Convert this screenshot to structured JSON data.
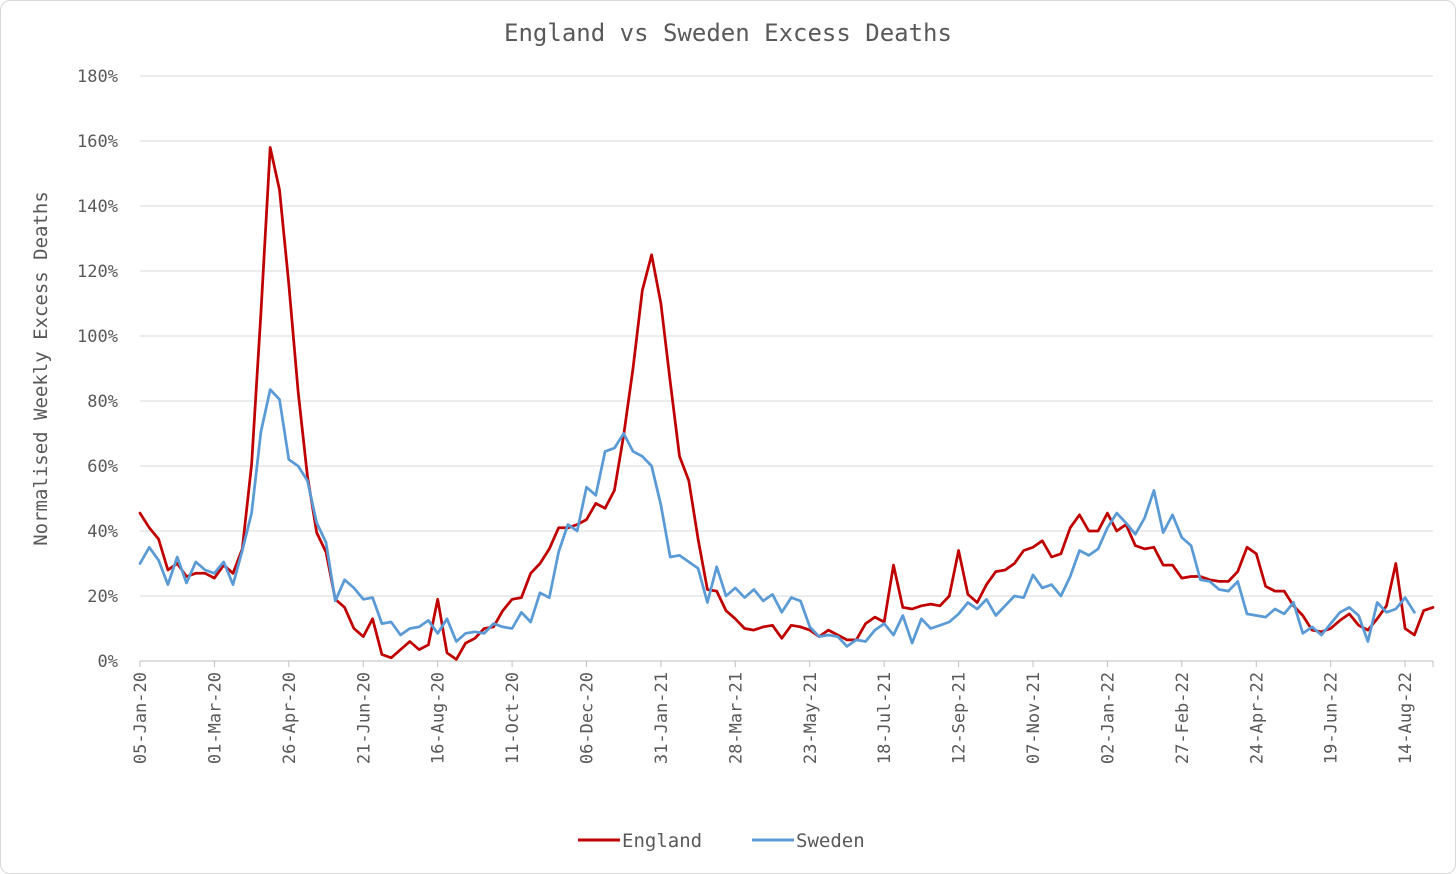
{
  "chart_data": {
    "type": "line",
    "title": "England vs Sweden Excess Deaths",
    "xlabel": "",
    "ylabel": "Normalised Weekly Excess Deaths",
    "ylim": [
      0,
      180
    ],
    "yticks": [
      0,
      20,
      40,
      60,
      80,
      100,
      120,
      140,
      160,
      180
    ],
    "ytick_labels": [
      "0%",
      "20%",
      "40%",
      "60%",
      "80%",
      "100%",
      "120%",
      "140%",
      "160%",
      "180%"
    ],
    "x_start": "05-Jan-20",
    "x_end": "21-Aug-22",
    "xtick_labels": [
      "05-Jan-20",
      "01-Mar-20",
      "26-Apr-20",
      "21-Jun-20",
      "16-Aug-20",
      "11-Oct-20",
      "06-Dec-20",
      "31-Jan-21",
      "28-Mar-21",
      "23-May-21",
      "18-Jul-21",
      "12-Sep-21",
      "07-Nov-21",
      "02-Jan-22",
      "27-Feb-22",
      "24-Apr-22",
      "19-Jun-22",
      "14-Aug-22"
    ],
    "grid": true,
    "legend_position": "bottom",
    "series": [
      {
        "name": "England",
        "color": "#c00000",
        "values": [
          45.5,
          41,
          37.5,
          28,
          30,
          26,
          27,
          27,
          25.5,
          29.5,
          27,
          34.5,
          60.5,
          107,
          158,
          145,
          116,
          83,
          57,
          39.5,
          33.5,
          19,
          16.5,
          10,
          7.5,
          13,
          2,
          1,
          3.5,
          6,
          3.5,
          5,
          19,
          2.5,
          0.5,
          5.5,
          7,
          10,
          10.5,
          15.5,
          19,
          19.5,
          27,
          30,
          34.5,
          41,
          41,
          42,
          43.5,
          48.5,
          47,
          52.5,
          69.5,
          90,
          114,
          125,
          110,
          86,
          63,
          55.5,
          37.5,
          22,
          21.5,
          15.5,
          13,
          10,
          9.5,
          10.5,
          11,
          7,
          11,
          10.5,
          9.5,
          7.5,
          9.5,
          8,
          6.5,
          6.5,
          11.5,
          13.5,
          12,
          29.5,
          16.5,
          16,
          17,
          17.5,
          17,
          20,
          34,
          20.5,
          18,
          23.5,
          27.5,
          28,
          30,
          34,
          35,
          37,
          32,
          33,
          41,
          45,
          40,
          40,
          45.5,
          40,
          42,
          35.5,
          34.5,
          35,
          29.5,
          29.5,
          25.5,
          26,
          26,
          25,
          24.5,
          24.5,
          27.5,
          35,
          33,
          23,
          21.5,
          21.5,
          17,
          14,
          9.5,
          9,
          10,
          12.5,
          14.5,
          11,
          9.5,
          13,
          17,
          30,
          10,
          8,
          15.5,
          16.5
        ]
      },
      {
        "name": "Sweden",
        "color": "#5b9bd5",
        "values": [
          30,
          35,
          31,
          23.5,
          32,
          24,
          30.5,
          28,
          27,
          30.5,
          23.5,
          34,
          45.5,
          70.5,
          83.5,
          80.5,
          62,
          60,
          55.5,
          42.5,
          36.5,
          18.5,
          25,
          22.5,
          19,
          19.5,
          11.5,
          12,
          8,
          10,
          10.5,
          12.5,
          8.5,
          13,
          6,
          8.5,
          9,
          8.5,
          11.5,
          10.5,
          10,
          15,
          12,
          21,
          19.5,
          33.5,
          42,
          40,
          53.5,
          51,
          64.5,
          65.5,
          70,
          64.5,
          63,
          60,
          48,
          32,
          32.5,
          30.5,
          28.5,
          18,
          29,
          20,
          22.5,
          19.5,
          22,
          18.5,
          20.5,
          15,
          19.5,
          18.5,
          10.5,
          7.5,
          8,
          7.5,
          4.5,
          6.5,
          6,
          9.5,
          11.5,
          8,
          14,
          5.5,
          13,
          10,
          11,
          12,
          14.5,
          18,
          16,
          19,
          14,
          17,
          20,
          19.5,
          26.5,
          22.5,
          23.5,
          20,
          26,
          34,
          32.5,
          34.5,
          41,
          45.5,
          42.5,
          39,
          44,
          52.5,
          39.5,
          45,
          38,
          35.5,
          25,
          24.5,
          22,
          21.5,
          24.5,
          14.5,
          14,
          13.5,
          16,
          14.5,
          18,
          8.5,
          10.5,
          8,
          11.5,
          15,
          16.5,
          14,
          6,
          18,
          15,
          16,
          19.5,
          15
        ]
      }
    ]
  }
}
